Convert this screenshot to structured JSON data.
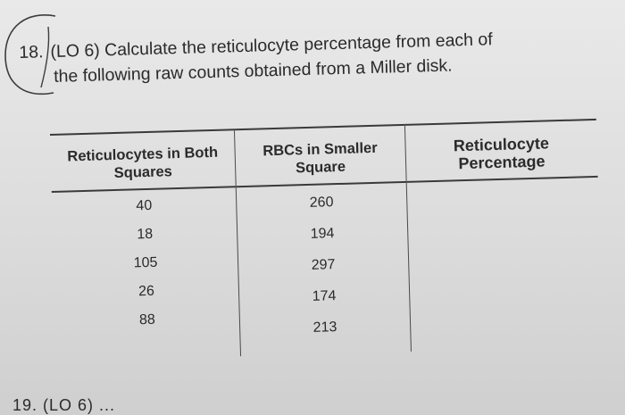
{
  "question": {
    "number": "18.",
    "text_line1": "(LO 6) Calculate the reticulocyte percentage from each of",
    "text_line2": "the following raw counts obtained from a Miller disk."
  },
  "table": {
    "headers": {
      "col1": "Reticulocytes in Both Squares",
      "col2": "RBCs in Smaller Square",
      "col3": "Reticulocyte Percentage"
    },
    "reticulocytes": [
      "40",
      "18",
      "105",
      "26",
      "88"
    ],
    "rbcs": [
      "260",
      "194",
      "297",
      "174",
      "213"
    ],
    "percentages": [
      "",
      "",
      "",
      "",
      ""
    ]
  },
  "footer": {
    "next_question_fragment": "19. (LO 6) ..."
  }
}
